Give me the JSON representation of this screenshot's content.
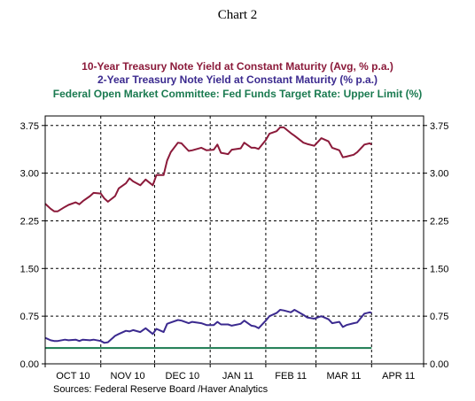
{
  "chart_data": {
    "type": "line",
    "title": "Chart 2",
    "source": "Sources:  Federal Reserve Board /Haver Analytics",
    "x_labels": [
      "OCT 10",
      "NOV 10",
      "DEC 10",
      "JAN 11",
      "FEB 11",
      "MAR 11",
      "APR 11"
    ],
    "y_ticks": [
      "0.00",
      "0.75",
      "1.50",
      "2.25",
      "3.00",
      "3.75"
    ],
    "ylim": [
      0,
      3.9
    ],
    "xlim": [
      "2010-10-01",
      "2011-04-30"
    ],
    "grid": true,
    "colors": {
      "ten_year": "#8b1a3a",
      "two_year": "#3b2a8f",
      "fed_funds": "#1a7a50"
    },
    "series": [
      {
        "name": "10-Year Treasury Note Yield at Constant Maturity (Avg, % p.a.)",
        "color": "#8b1a3a",
        "x": [
          "2010-10-01",
          "2010-10-04",
          "2010-10-06",
          "2010-10-08",
          "2010-10-12",
          "2010-10-14",
          "2010-10-18",
          "2010-10-20",
          "2010-10-22",
          "2010-10-26",
          "2010-10-28",
          "2010-11-01",
          "2010-11-03",
          "2010-11-05",
          "2010-11-09",
          "2010-11-11",
          "2010-11-15",
          "2010-11-17",
          "2010-11-19",
          "2010-11-23",
          "2010-11-26",
          "2010-11-30",
          "2010-12-02",
          "2010-12-06",
          "2010-12-08",
          "2010-12-10",
          "2010-12-14",
          "2010-12-16",
          "2010-12-20",
          "2010-12-22",
          "2010-12-27",
          "2010-12-30",
          "2011-01-03",
          "2011-01-05",
          "2011-01-07",
          "2011-01-11",
          "2011-01-13",
          "2011-01-18",
          "2011-01-20",
          "2011-01-24",
          "2011-01-26",
          "2011-01-28",
          "2011-02-01",
          "2011-02-03",
          "2011-02-07",
          "2011-02-09",
          "2011-02-11",
          "2011-02-15",
          "2011-02-17",
          "2011-02-22",
          "2011-02-24",
          "2011-02-28",
          "2011-03-02",
          "2011-03-04",
          "2011-03-08",
          "2011-03-10",
          "2011-03-14",
          "2011-03-16",
          "2011-03-18",
          "2011-03-22",
          "2011-03-24",
          "2011-03-28",
          "2011-03-31",
          "2011-04-01"
        ],
        "values": [
          2.52,
          2.44,
          2.4,
          2.4,
          2.47,
          2.5,
          2.54,
          2.51,
          2.56,
          2.64,
          2.69,
          2.68,
          2.6,
          2.55,
          2.64,
          2.76,
          2.84,
          2.92,
          2.87,
          2.81,
          2.9,
          2.81,
          2.97,
          2.97,
          3.2,
          3.33,
          3.48,
          3.47,
          3.35,
          3.36,
          3.4,
          3.36,
          3.37,
          3.45,
          3.32,
          3.3,
          3.37,
          3.39,
          3.48,
          3.4,
          3.4,
          3.38,
          3.52,
          3.62,
          3.66,
          3.72,
          3.72,
          3.63,
          3.59,
          3.48,
          3.46,
          3.43,
          3.49,
          3.55,
          3.5,
          3.4,
          3.36,
          3.25,
          3.26,
          3.29,
          3.33,
          3.45,
          3.47,
          3.45
        ]
      },
      {
        "name": "2-Year Treasury Note Yield at Constant Maturity (% p.a.)",
        "color": "#3b2a8f",
        "x": [
          "2010-10-01",
          "2010-10-04",
          "2010-10-06",
          "2010-10-08",
          "2010-10-12",
          "2010-10-14",
          "2010-10-18",
          "2010-10-20",
          "2010-10-22",
          "2010-10-26",
          "2010-10-28",
          "2010-11-01",
          "2010-11-03",
          "2010-11-05",
          "2010-11-09",
          "2010-11-11",
          "2010-11-15",
          "2010-11-17",
          "2010-11-19",
          "2010-11-23",
          "2010-11-26",
          "2010-11-30",
          "2010-12-02",
          "2010-12-06",
          "2010-12-08",
          "2010-12-10",
          "2010-12-14",
          "2010-12-16",
          "2010-12-20",
          "2010-12-22",
          "2010-12-27",
          "2010-12-30",
          "2011-01-03",
          "2011-01-05",
          "2011-01-07",
          "2011-01-11",
          "2011-01-13",
          "2011-01-18",
          "2011-01-20",
          "2011-01-24",
          "2011-01-26",
          "2011-01-28",
          "2011-02-01",
          "2011-02-03",
          "2011-02-07",
          "2011-02-09",
          "2011-02-11",
          "2011-02-15",
          "2011-02-17",
          "2011-02-22",
          "2011-02-24",
          "2011-02-28",
          "2011-03-02",
          "2011-03-04",
          "2011-03-08",
          "2011-03-10",
          "2011-03-14",
          "2011-03-16",
          "2011-03-18",
          "2011-03-22",
          "2011-03-24",
          "2011-03-28",
          "2011-03-31",
          "2011-04-01"
        ],
        "values": [
          0.41,
          0.37,
          0.36,
          0.36,
          0.38,
          0.37,
          0.38,
          0.36,
          0.38,
          0.37,
          0.38,
          0.36,
          0.33,
          0.34,
          0.44,
          0.47,
          0.52,
          0.51,
          0.53,
          0.5,
          0.56,
          0.47,
          0.55,
          0.5,
          0.63,
          0.65,
          0.69,
          0.68,
          0.64,
          0.66,
          0.64,
          0.61,
          0.61,
          0.66,
          0.62,
          0.62,
          0.6,
          0.63,
          0.68,
          0.6,
          0.59,
          0.56,
          0.68,
          0.75,
          0.8,
          0.85,
          0.84,
          0.81,
          0.85,
          0.77,
          0.73,
          0.71,
          0.73,
          0.75,
          0.7,
          0.64,
          0.66,
          0.58,
          0.61,
          0.64,
          0.65,
          0.79,
          0.81,
          0.8
        ]
      },
      {
        "name": "Federal Open Market Committee: Fed Funds Target Rate: Upper Limit (%)",
        "color": "#1a7a50",
        "x": [
          "2010-10-01",
          "2011-04-01"
        ],
        "values": [
          0.25,
          0.25
        ]
      }
    ]
  }
}
